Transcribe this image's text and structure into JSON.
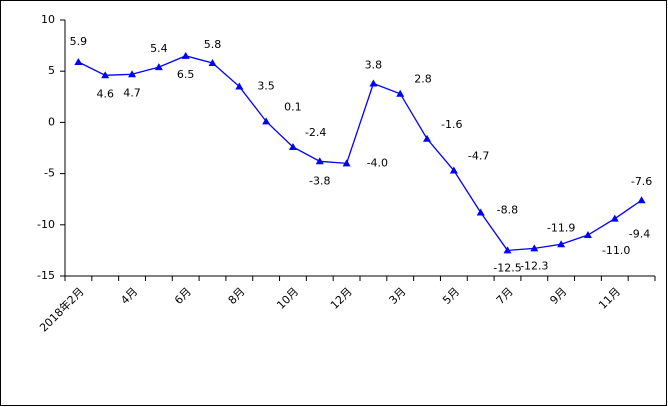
{
  "chart_data": {
    "type": "line",
    "categories": [
      "2018年2月",
      null,
      "4月",
      null,
      "6月",
      null,
      "8月",
      null,
      "10月",
      null,
      "12月",
      null,
      "3月",
      null,
      "5月",
      null,
      "7月",
      null,
      "9月",
      null,
      "11月",
      null
    ],
    "series": [
      {
        "color": "#0000ff",
        "values": [
          5.9,
          4.6,
          4.7,
          5.4,
          6.5,
          5.8,
          3.5,
          0.1,
          -2.4,
          -3.8,
          -4.0,
          3.8,
          2.8,
          -1.6,
          -4.7,
          -8.8,
          -12.5,
          -12.3,
          -11.9,
          -11.0,
          -9.4,
          -7.6
        ],
        "value_labels": [
          "5.9",
          "4.6",
          "4.7",
          "5.4",
          "6.5",
          "5.8",
          "3.5",
          "0.1",
          "-2.4",
          "-3.8",
          "-4.0",
          "3.8",
          "2.8",
          "-1.6",
          "-4.7",
          "-8.8",
          "-12.5",
          "-12.3",
          "-11.9",
          "-11.0",
          "-9.4",
          "-7.6"
        ]
      }
    ],
    "ylim": [
      -15,
      10
    ],
    "yticks": [
      -15,
      -10,
      -5,
      0,
      5,
      10
    ],
    "grid": false
  }
}
